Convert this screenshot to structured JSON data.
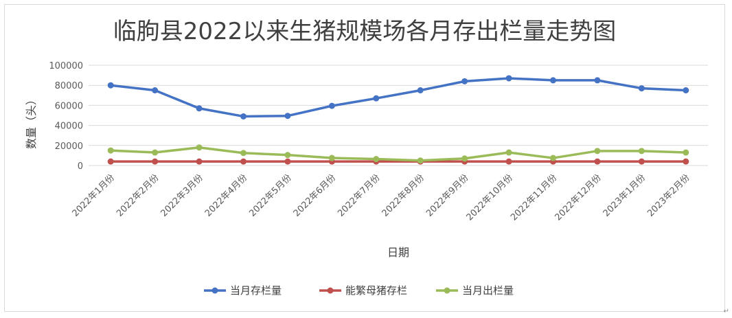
{
  "chart_data": {
    "type": "line",
    "title": "临朐县2022以来生猪规模场各月存出栏量走势图",
    "xlabel": "日期",
    "ylabel": "数量（头）",
    "ylim": [
      0,
      100000
    ],
    "yticks": [
      0,
      20000,
      40000,
      60000,
      80000,
      100000
    ],
    "grid": true,
    "legend_position": "bottom",
    "categories": [
      "2022年1月份",
      "2022年2月份",
      "2022年3月份",
      "2022年4月份",
      "2022年5月份",
      "2022年6月份",
      "2022年7月份",
      "2022年8月份",
      "2022年9月份",
      "2022年10月份",
      "2022年11月份",
      "2022年12月份",
      "2023年1月份",
      "2023年2月份"
    ],
    "series": [
      {
        "name": "当月存栏量",
        "color": "#4472c4",
        "values": [
          80000,
          75000,
          57000,
          49000,
          49500,
          59500,
          67000,
          75000,
          84000,
          87000,
          85000,
          85000,
          77000,
          75000
        ]
      },
      {
        "name": "能繁母猪存栏",
        "color": "#c0504d",
        "values": [
          4000,
          4000,
          4000,
          4000,
          4000,
          4000,
          4000,
          4000,
          4000,
          4000,
          4000,
          4000,
          4000,
          4000
        ]
      },
      {
        "name": "当月出栏量",
        "color": "#9bbb59",
        "values": [
          15000,
          13000,
          18000,
          12500,
          10500,
          7500,
          6500,
          5000,
          7000,
          13000,
          7500,
          14500,
          14500,
          13000
        ]
      }
    ]
  },
  "page_mark": "↵"
}
